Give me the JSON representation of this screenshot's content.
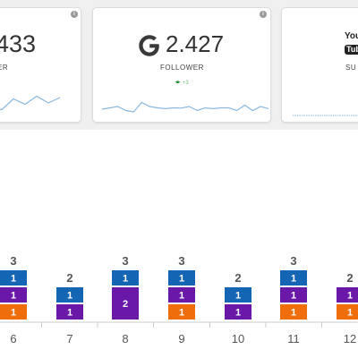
{
  "cards": [
    {
      "number": "433",
      "label": "WER",
      "sparkline": [
        0.1,
        0.05,
        0.45,
        0.25,
        0.55,
        0.3,
        0.5
      ]
    },
    {
      "icon": "google-icon",
      "number": "2.427",
      "label": "FOLLOWER",
      "trend": "+3",
      "sparkline": [
        0.4,
        0.45,
        0.5,
        0.35,
        0.3,
        0.65,
        0.5,
        0.45,
        0.42,
        0.45,
        0.44,
        0.5,
        0.35,
        0.45,
        0.42,
        0.45,
        0.45,
        0.35,
        0.55,
        0.35,
        0.5,
        0.42
      ]
    },
    {
      "icon_text": {
        "you": "You",
        "tube": "Tube"
      },
      "label": "SU",
      "sparkline": [
        0.5,
        0.5,
        0.5,
        0.5,
        0.5,
        0.5
      ]
    }
  ],
  "colors": {
    "top_band": "#f0f0f0",
    "sparkline": "#8ab8e0",
    "blue": "#1565b5",
    "purple": "#6a18a8",
    "orange": "#f06d0c",
    "trend_up": "#2e9a3e"
  },
  "chart_data": {
    "type": "bar",
    "stacked": true,
    "categories": [
      "6",
      "7",
      "8",
      "9",
      "10",
      "11",
      "12"
    ],
    "totals": [
      "3",
      "2",
      "3",
      "3",
      "2",
      "3",
      "2"
    ],
    "series": [
      {
        "color": "orange",
        "values": [
          1,
          0,
          0,
          1,
          0,
          1,
          1
        ]
      },
      {
        "color": "purple",
        "values": [
          1,
          1,
          2,
          1,
          1,
          1,
          1
        ]
      },
      {
        "color": "blue",
        "values": [
          1,
          1,
          1,
          1,
          1,
          1,
          0
        ]
      }
    ]
  }
}
